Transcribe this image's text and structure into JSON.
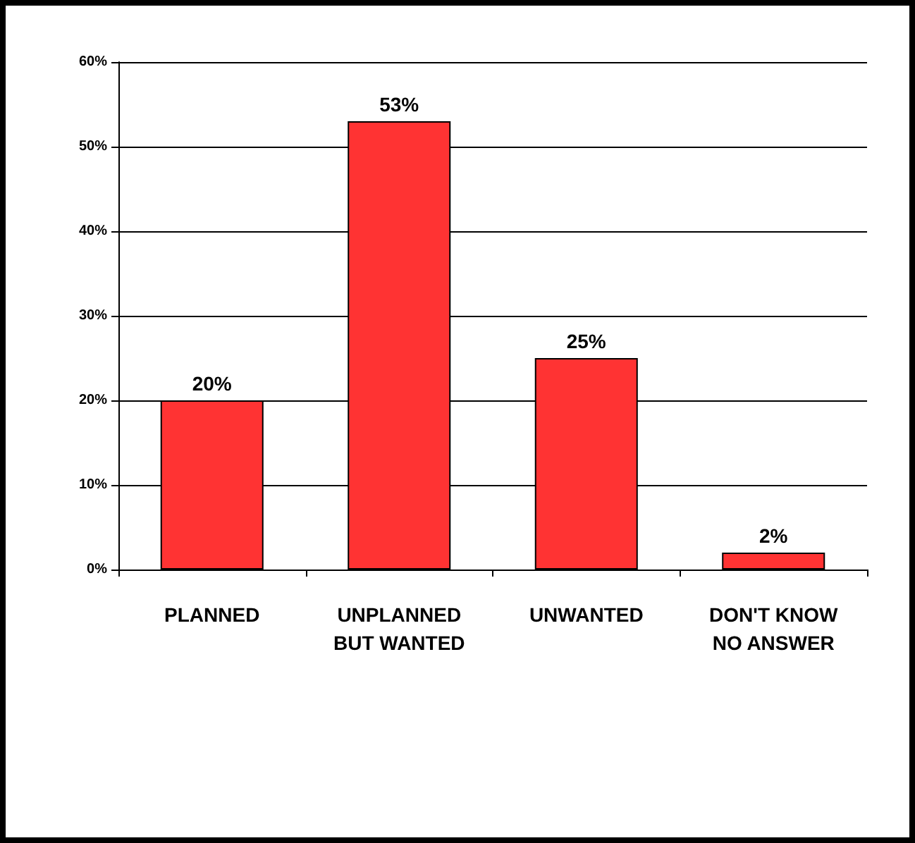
{
  "chart_data": {
    "type": "bar",
    "categories": [
      "PLANNED",
      "UNPLANNED\nBUT WANTED",
      "UNWANTED",
      "DON'T KNOW\nNO ANSWER"
    ],
    "values": [
      20,
      53,
      25,
      2
    ],
    "value_labels": [
      "20%",
      "53%",
      "25%",
      "2%"
    ],
    "color": "#ff3333",
    "ylim": [
      0,
      60
    ],
    "yticks": [
      {
        "value": 0,
        "label": "0%"
      },
      {
        "value": 10,
        "label": "10%"
      },
      {
        "value": 20,
        "label": "20%"
      },
      {
        "value": 30,
        "label": "30%"
      },
      {
        "value": 40,
        "label": "40%"
      },
      {
        "value": 50,
        "label": "50%"
      },
      {
        "value": 60,
        "label": "60%"
      }
    ],
    "grid": "y"
  }
}
